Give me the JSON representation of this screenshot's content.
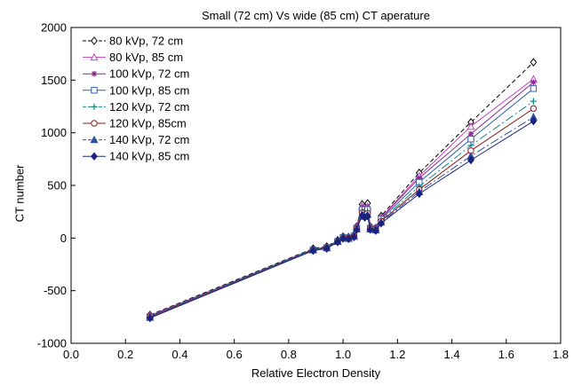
{
  "chart_data": {
    "type": "line",
    "title": "Small (72 cm) Vs wide (85 cm) CT aperature",
    "xlabel": "Relative Electron Density",
    "ylabel": "CT number",
    "xlim": [
      0.0,
      1.8
    ],
    "ylim": [
      -1000,
      2000
    ],
    "xticks": [
      "0.0",
      "0.2",
      "0.4",
      "0.6",
      "0.8",
      "1.0",
      "1.2",
      "1.4",
      "1.6",
      "1.8"
    ],
    "yticks": [
      "-1000",
      "-500",
      "0",
      "500",
      "1000",
      "1500",
      "2000"
    ],
    "grid": false,
    "legend_position": "top-left",
    "x": [
      0.29,
      0.89,
      0.94,
      0.98,
      1.0,
      1.02,
      1.04,
      1.05,
      1.07,
      1.08,
      1.09,
      1.1,
      1.12,
      1.14,
      1.28,
      1.47,
      1.7
    ],
    "series": [
      {
        "name": "80 kVp, 72 cm",
        "color": "#000000",
        "marker": "diamond-open",
        "dash": "5,3",
        "values": [
          -730,
          -100,
          -80,
          -20,
          15,
          10,
          30,
          110,
          320,
          290,
          330,
          110,
          95,
          210,
          620,
          1100,
          1670
        ]
      },
      {
        "name": "80 kVp, 85 cm",
        "color": "#c040c0",
        "marker": "triangle-open",
        "dash": "",
        "values": [
          -735,
          -110,
          -90,
          -30,
          10,
          5,
          25,
          105,
          300,
          270,
          300,
          105,
          90,
          195,
          590,
          1060,
          1510
        ]
      },
      {
        "name": "100 kVp, 72 cm",
        "color": "#8a2a8a",
        "marker": "star",
        "dash": "",
        "values": [
          -740,
          -105,
          -85,
          -25,
          10,
          5,
          25,
          100,
          290,
          260,
          290,
          100,
          85,
          190,
          570,
          990,
          1480
        ]
      },
      {
        "name": "100 kVp, 85 cm",
        "color": "#2f5fa8",
        "marker": "square-open",
        "dash": "",
        "values": [
          -745,
          -112,
          -92,
          -32,
          5,
          0,
          20,
          95,
          270,
          245,
          270,
          95,
          80,
          180,
          530,
          940,
          1420
        ]
      },
      {
        "name": "120 kVp, 72 cm",
        "color": "#138a8a",
        "marker": "plus",
        "dash": "10,3,2,3",
        "values": [
          -745,
          -108,
          -90,
          -30,
          5,
          0,
          20,
          95,
          260,
          235,
          255,
          95,
          80,
          170,
          490,
          880,
          1300
        ]
      },
      {
        "name": "120 kVp, 85cm",
        "color": "#8b1a1a",
        "marker": "circle-open",
        "dash": "",
        "values": [
          -750,
          -115,
          -95,
          -35,
          0,
          -5,
          15,
          90,
          240,
          220,
          235,
          90,
          75,
          160,
          460,
          830,
          1230
        ]
      },
      {
        "name": "140 kVp, 72 cm",
        "color": "#2d4fa0",
        "marker": "triangle-filled",
        "dash": "10,3,2,3",
        "values": [
          -755,
          -115,
          -95,
          -35,
          0,
          -5,
          15,
          85,
          225,
          205,
          220,
          85,
          75,
          150,
          440,
          780,
          1150
        ]
      },
      {
        "name": "140 kVp, 85 cm",
        "color": "#1a237e",
        "marker": "diamond-filled",
        "dash": "",
        "values": [
          -760,
          -120,
          -100,
          -38,
          -5,
          -8,
          10,
          80,
          215,
          195,
          210,
          80,
          70,
          140,
          420,
          740,
          1110
        ]
      }
    ]
  }
}
